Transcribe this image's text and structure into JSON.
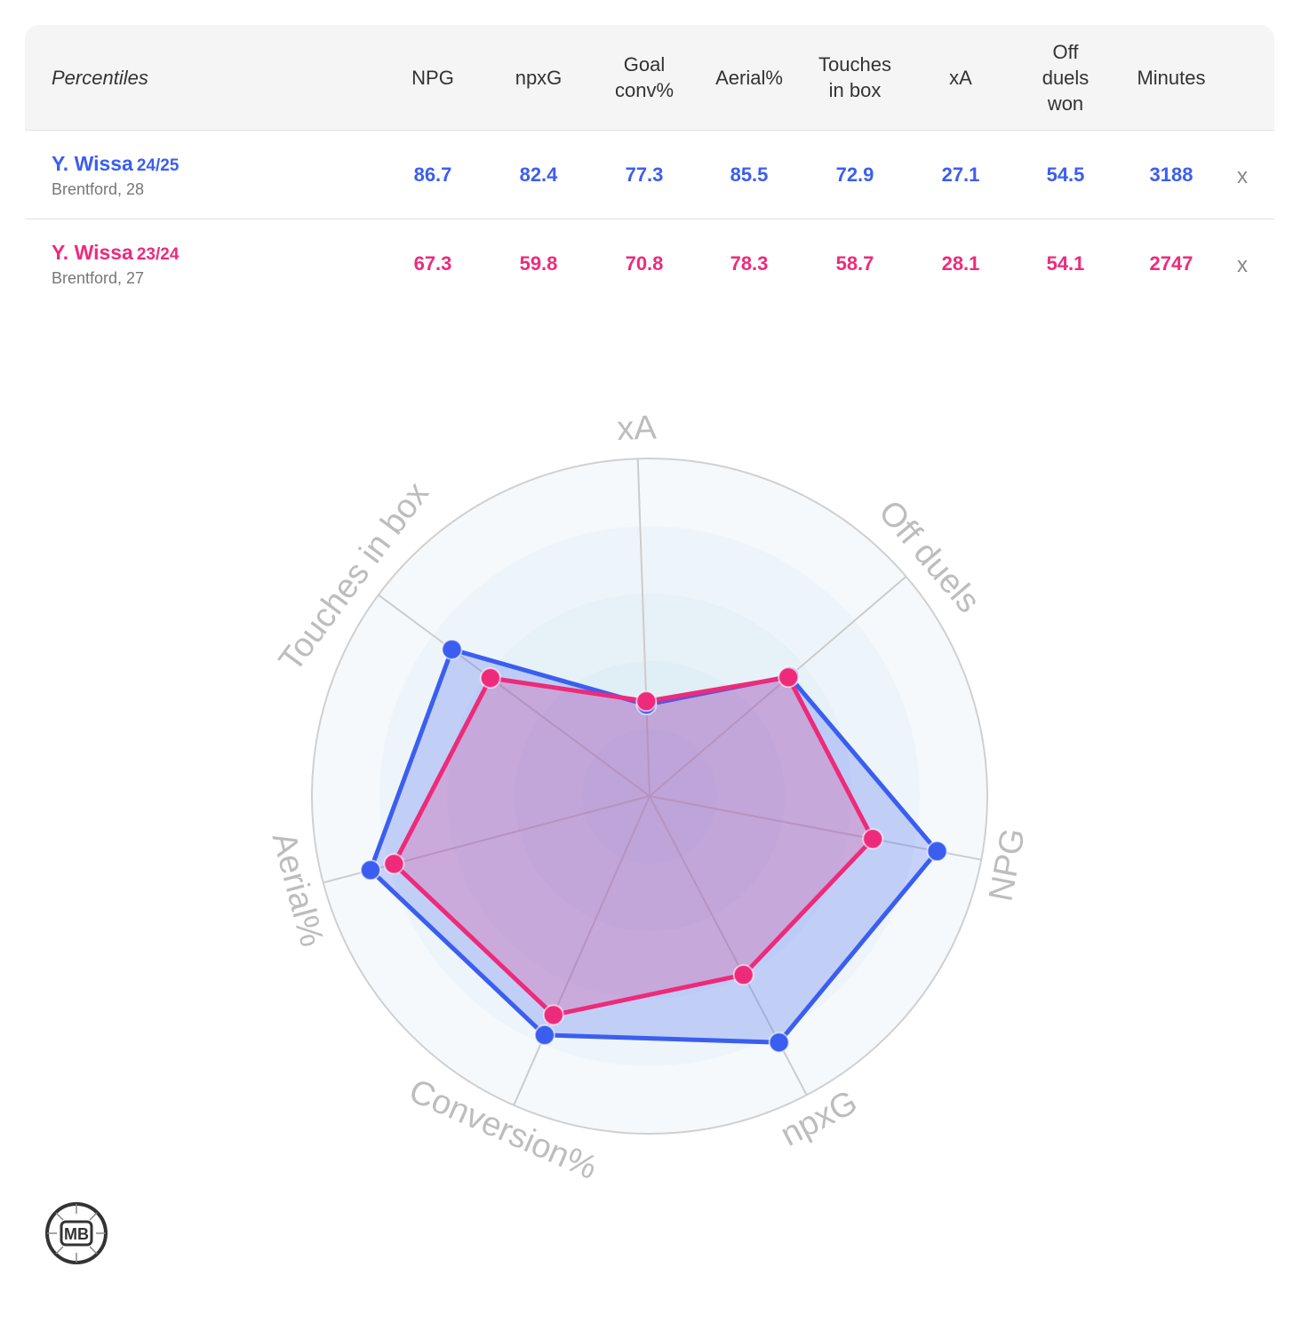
{
  "table": {
    "header_label": "Percentiles",
    "columns": [
      {
        "lines": [
          "NPG"
        ]
      },
      {
        "lines": [
          "npxG"
        ]
      },
      {
        "lines": [
          "Goal",
          "conv%"
        ]
      },
      {
        "lines": [
          "Aerial%"
        ]
      },
      {
        "lines": [
          "Touches",
          "in box"
        ]
      },
      {
        "lines": [
          "xA"
        ]
      },
      {
        "lines": [
          "Off",
          "duels",
          "won"
        ]
      },
      {
        "lines": [
          "Minutes"
        ]
      }
    ],
    "remove_label": "x",
    "rows": [
      {
        "name": "Y. Wissa",
        "season": "24/25",
        "club": "Brentford, 28",
        "color": "#3b5ef0",
        "values": [
          "86.7",
          "82.4",
          "77.3",
          "85.5",
          "72.9",
          "27.1",
          "54.5",
          "3188"
        ]
      },
      {
        "name": "Y. Wissa",
        "season": "23/24",
        "club": "Brentford, 27",
        "color": "#ee2a7b",
        "values": [
          "67.3",
          "59.8",
          "70.8",
          "78.3",
          "58.7",
          "28.1",
          "54.1",
          "2747"
        ]
      }
    ]
  },
  "chart_data": {
    "type": "radar",
    "axes": [
      "xA",
      "Off duels",
      "NPG",
      "npxG",
      "Conversion%",
      "Aerial%",
      "Touches in box"
    ],
    "range": [
      0,
      100
    ],
    "rings": 5,
    "series": [
      {
        "name": "Y. Wissa 24/25",
        "color": "#3b5ef0",
        "fill": "rgba(59,94,240,0.25)",
        "values": [
          27.1,
          54.5,
          86.7,
          82.4,
          77.3,
          85.5,
          72.9
        ]
      },
      {
        "name": "Y. Wissa 23/24",
        "color": "#ee2a7b",
        "fill": "rgba(238,42,123,0.22)",
        "values": [
          28.1,
          54.1,
          67.3,
          59.8,
          70.8,
          78.3,
          58.7
        ]
      }
    ]
  },
  "logo": {
    "text": "MB"
  }
}
